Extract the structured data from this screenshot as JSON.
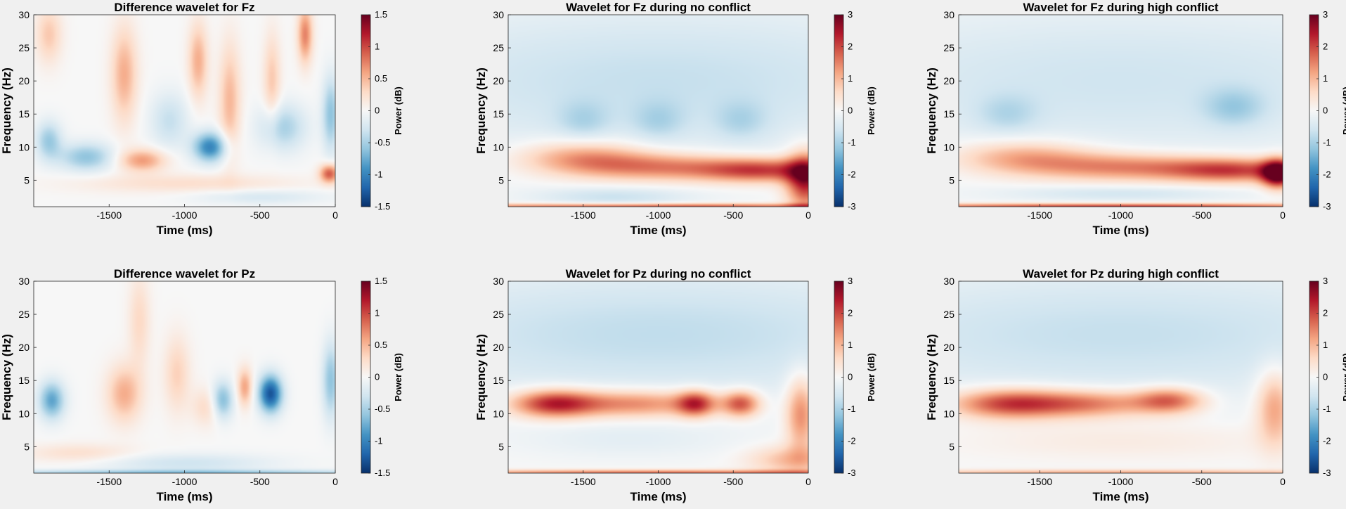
{
  "colormap": [
    "#08306b",
    "#2166ac",
    "#4393c3",
    "#92c5de",
    "#d1e5f0",
    "#f7f7f7",
    "#fddbc7",
    "#f4a582",
    "#d6604d",
    "#b2182b",
    "#67001f"
  ],
  "chart_data": [
    {
      "type": "heatmap",
      "id": "fz-diff",
      "title": "Difference wavelet for Fz",
      "xlabel": "Time (ms)",
      "ylabel": "Frequency (Hz)",
      "xlim": [
        -2000,
        0
      ],
      "ylim": [
        1,
        30
      ],
      "xticks": [
        -1500,
        -1000,
        -500,
        0
      ],
      "yticks": [
        5,
        10,
        15,
        20,
        25,
        30
      ],
      "colorbar": {
        "label": "Power (dB)",
        "clim": [
          -1.5,
          1.5
        ],
        "ticks": [
          -1.5,
          -1,
          -0.5,
          0,
          0.5,
          1,
          1.5
        ]
      },
      "features": [
        {
          "t": -1900,
          "f": 27,
          "v": 0.4,
          "st": 60,
          "sf": 3
        },
        {
          "t": -1900,
          "f": 11,
          "v": -0.55,
          "st": 60,
          "sf": 2
        },
        {
          "t": -1650,
          "f": 8.5,
          "v": -0.6,
          "st": 130,
          "sf": 1.5
        },
        {
          "t": -1400,
          "f": 21,
          "v": 0.55,
          "st": 60,
          "sf": 5
        },
        {
          "t": -1280,
          "f": 8,
          "v": 0.65,
          "st": 110,
          "sf": 1.2
        },
        {
          "t": -1100,
          "f": 14,
          "v": -0.35,
          "st": 90,
          "sf": 3
        },
        {
          "t": -910,
          "f": 23,
          "v": 0.55,
          "st": 45,
          "sf": 4
        },
        {
          "t": -830,
          "f": 10,
          "v": -1.0,
          "st": 80,
          "sf": 1.6
        },
        {
          "t": -700,
          "f": 17,
          "v": 0.5,
          "st": 50,
          "sf": 6
        },
        {
          "t": -420,
          "f": 20,
          "v": 0.4,
          "st": 40,
          "sf": 5
        },
        {
          "t": -200,
          "f": 27,
          "v": 0.75,
          "st": 35,
          "sf": 3
        },
        {
          "t": -350,
          "f": 13,
          "v": -0.5,
          "st": 110,
          "sf": 2.5
        },
        {
          "t": -30,
          "f": 15,
          "v": -0.6,
          "st": 40,
          "sf": 4
        },
        {
          "t": -40,
          "f": 6,
          "v": 0.95,
          "st": 45,
          "sf": 1
        },
        {
          "t": -1000,
          "f": 4.5,
          "v": 0.25,
          "st": 500,
          "sf": 1
        },
        {
          "t": -500,
          "f": 2.5,
          "v": -0.25,
          "st": 300,
          "sf": 0.8
        }
      ]
    },
    {
      "type": "heatmap",
      "id": "fz-noconf",
      "title": "Wavelet for Fz during no conflict",
      "xlabel": "Time (ms)",
      "ylabel": "Frequency (Hz)",
      "xlim": [
        -2000,
        0
      ],
      "ylim": [
        1,
        30
      ],
      "xticks": [
        -1500,
        -1000,
        -500,
        0
      ],
      "yticks": [
        5,
        10,
        15,
        20,
        25,
        30
      ],
      "colorbar": {
        "label": "Power (dB)",
        "clim": [
          -3,
          3
        ],
        "ticks": [
          -3,
          -2,
          -1,
          0,
          1,
          2,
          3
        ]
      },
      "features": [
        {
          "t": -1000,
          "f": 20,
          "v": -0.7,
          "st": 1500,
          "sf": 8
        },
        {
          "t": -1500,
          "f": 14,
          "v": -0.5,
          "st": 120,
          "sf": 2
        },
        {
          "t": -1000,
          "f": 14,
          "v": -0.5,
          "st": 120,
          "sf": 2
        },
        {
          "t": -450,
          "f": 14,
          "v": -0.5,
          "st": 120,
          "sf": 2
        },
        {
          "t": -1500,
          "f": 8.5,
          "v": 1.3,
          "st": 300,
          "sf": 1.8
        },
        {
          "t": -1000,
          "f": 7,
          "v": 1.5,
          "st": 400,
          "sf": 1.5
        },
        {
          "t": -300,
          "f": 6.5,
          "v": 2.0,
          "st": 300,
          "sf": 1.3
        },
        {
          "t": -20,
          "f": 5,
          "v": 2.4,
          "st": 90,
          "sf": 3
        },
        {
          "t": -1300,
          "f": 2.5,
          "v": -0.6,
          "st": 350,
          "sf": 1
        },
        {
          "t": -1000,
          "f": 1,
          "v": 2.0,
          "st": 1200,
          "sf": 0.35
        }
      ]
    },
    {
      "type": "heatmap",
      "id": "fz-highconf",
      "title": "Wavelet for Fz during high conflict",
      "xlabel": "Time (ms)",
      "ylabel": "Frequency (Hz)",
      "xlim": [
        -2000,
        0
      ],
      "ylim": [
        1,
        30
      ],
      "xticks": [
        -1500,
        -1000,
        -500,
        0
      ],
      "yticks": [
        5,
        10,
        15,
        20,
        25,
        30
      ],
      "colorbar": {
        "label": "Power (dB)",
        "clim": [
          -3,
          3
        ],
        "ticks": [
          -3,
          -2,
          -1,
          0,
          1,
          2,
          3
        ]
      },
      "features": [
        {
          "t": -1000,
          "f": 20,
          "v": -0.6,
          "st": 1500,
          "sf": 8
        },
        {
          "t": -1700,
          "f": 15,
          "v": -0.5,
          "st": 130,
          "sf": 2
        },
        {
          "t": -300,
          "f": 16,
          "v": -0.7,
          "st": 130,
          "sf": 2
        },
        {
          "t": -1600,
          "f": 8.5,
          "v": 1.2,
          "st": 300,
          "sf": 1.8
        },
        {
          "t": -1000,
          "f": 7,
          "v": 1.5,
          "st": 400,
          "sf": 1.5
        },
        {
          "t": -300,
          "f": 6.5,
          "v": 2.0,
          "st": 300,
          "sf": 1.3
        },
        {
          "t": -30,
          "f": 6,
          "v": 3.0,
          "st": 70,
          "sf": 1.5
        },
        {
          "t": -1000,
          "f": 3,
          "v": -0.5,
          "st": 500,
          "sf": 0.8
        },
        {
          "t": -1000,
          "f": 1,
          "v": 2.2,
          "st": 1200,
          "sf": 0.35
        }
      ]
    },
    {
      "type": "heatmap",
      "id": "pz-diff",
      "title": "Difference wavelet for Pz",
      "xlabel": "Time (ms)",
      "ylabel": "Frequency (Hz)",
      "xlim": [
        -2000,
        0
      ],
      "ylim": [
        1,
        30
      ],
      "xticks": [
        -1500,
        -1000,
        -500,
        0
      ],
      "yticks": [
        5,
        10,
        15,
        20,
        25,
        30
      ],
      "colorbar": {
        "label": "Power (dB)",
        "clim": [
          -1.5,
          1.5
        ],
        "ticks": [
          -1.5,
          -1,
          -0.5,
          0,
          0.5,
          1,
          1.5
        ]
      },
      "features": [
        {
          "t": -1880,
          "f": 12,
          "v": -0.8,
          "st": 60,
          "sf": 2
        },
        {
          "t": -1400,
          "f": 13,
          "v": 0.55,
          "st": 80,
          "sf": 3
        },
        {
          "t": -1300,
          "f": 24,
          "v": 0.3,
          "st": 50,
          "sf": 5
        },
        {
          "t": -1050,
          "f": 16,
          "v": 0.35,
          "st": 60,
          "sf": 4
        },
        {
          "t": -850,
          "f": 11,
          "v": 0.3,
          "st": 70,
          "sf": 2
        },
        {
          "t": -750,
          "f": 12,
          "v": -0.7,
          "st": 50,
          "sf": 2
        },
        {
          "t": -600,
          "f": 14,
          "v": 0.6,
          "st": 35,
          "sf": 2
        },
        {
          "t": -430,
          "f": 13,
          "v": -1.3,
          "st": 55,
          "sf": 2
        },
        {
          "t": -30,
          "f": 15,
          "v": -0.6,
          "st": 40,
          "sf": 4
        },
        {
          "t": -1700,
          "f": 4,
          "v": 0.25,
          "st": 250,
          "sf": 1
        },
        {
          "t": -1000,
          "f": 2.5,
          "v": -0.3,
          "st": 400,
          "sf": 1
        },
        {
          "t": -1000,
          "f": 1,
          "v": -0.6,
          "st": 1200,
          "sf": 0.35
        }
      ]
    },
    {
      "type": "heatmap",
      "id": "pz-noconf",
      "title": "Wavelet for Pz during no conflict",
      "xlabel": "Time (ms)",
      "ylabel": "Frequency (Hz)",
      "xlim": [
        -2000,
        0
      ],
      "ylim": [
        1,
        30
      ],
      "xticks": [
        -1500,
        -1000,
        -500,
        0
      ],
      "yticks": [
        5,
        10,
        15,
        20,
        25,
        30
      ],
      "colorbar": {
        "label": "Power (dB)",
        "clim": [
          -3,
          3
        ],
        "ticks": [
          -3,
          -2,
          -1,
          0,
          1,
          2,
          3
        ]
      },
      "features": [
        {
          "t": -1000,
          "f": 22,
          "v": -0.75,
          "st": 1500,
          "sf": 7
        },
        {
          "t": -1700,
          "f": 11.5,
          "v": 2.2,
          "st": 200,
          "sf": 1.5
        },
        {
          "t": -1150,
          "f": 11.5,
          "v": 1.6,
          "st": 350,
          "sf": 1.5
        },
        {
          "t": -750,
          "f": 11.5,
          "v": 1.9,
          "st": 90,
          "sf": 1.4
        },
        {
          "t": -450,
          "f": 11.5,
          "v": 1.9,
          "st": 90,
          "sf": 1.4
        },
        {
          "t": -50,
          "f": 10,
          "v": 1.5,
          "st": 70,
          "sf": 4
        },
        {
          "t": -1200,
          "f": 6,
          "v": -0.25,
          "st": 500,
          "sf": 2
        },
        {
          "t": -100,
          "f": 3,
          "v": 1.0,
          "st": 200,
          "sf": 1.5
        },
        {
          "t": -1000,
          "f": 1,
          "v": 1.8,
          "st": 1200,
          "sf": 0.35
        }
      ]
    },
    {
      "type": "heatmap",
      "id": "pz-highconf",
      "title": "Wavelet for Pz during high conflict",
      "xlabel": "Time (ms)",
      "ylabel": "Frequency (Hz)",
      "xlim": [
        -2000,
        0
      ],
      "ylim": [
        1,
        30
      ],
      "xticks": [
        -1500,
        -1000,
        -500,
        0
      ],
      "yticks": [
        5,
        10,
        15,
        20,
        25,
        30
      ],
      "colorbar": {
        "label": "Power (dB)",
        "clim": [
          -3,
          3
        ],
        "ticks": [
          -3,
          -2,
          -1,
          0,
          1,
          2,
          3
        ]
      },
      "features": [
        {
          "t": -1000,
          "f": 22,
          "v": -0.7,
          "st": 1500,
          "sf": 7
        },
        {
          "t": -1700,
          "f": 11.5,
          "v": 2.0,
          "st": 250,
          "sf": 1.6
        },
        {
          "t": -1200,
          "f": 11.5,
          "v": 1.6,
          "st": 300,
          "sf": 1.5
        },
        {
          "t": -700,
          "f": 12,
          "v": 1.7,
          "st": 150,
          "sf": 1.4
        },
        {
          "t": -50,
          "f": 11,
          "v": 1.3,
          "st": 80,
          "sf": 4
        },
        {
          "t": -1000,
          "f": 6,
          "v": 0.3,
          "st": 700,
          "sf": 2
        },
        {
          "t": -1000,
          "f": 1,
          "v": 1.2,
          "st": 1200,
          "sf": 0.35
        }
      ]
    }
  ]
}
